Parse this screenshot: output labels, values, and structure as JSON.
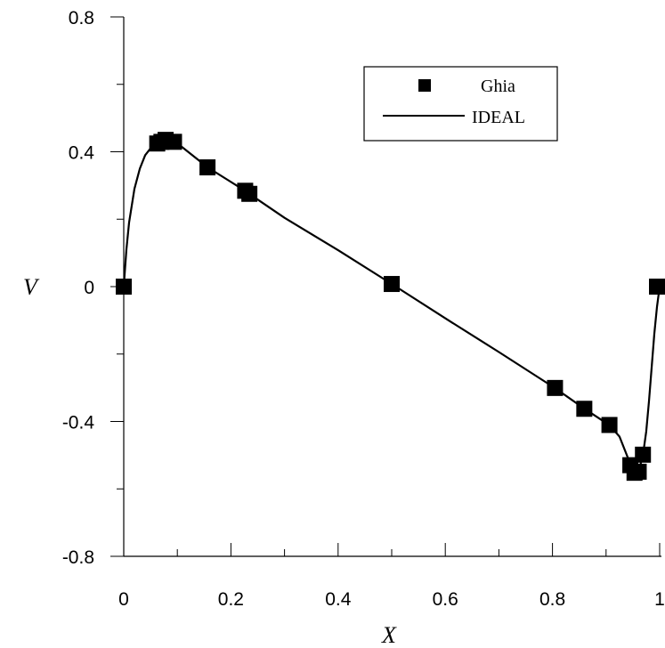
{
  "chart_data": {
    "type": "line",
    "xlabel": "X",
    "ylabel": "V",
    "xlim": [
      0,
      1
    ],
    "ylim": [
      -0.8,
      0.8
    ],
    "x_ticks": [
      "0",
      "0.2",
      "0.4",
      "0.6",
      "0.8",
      "1"
    ],
    "y_ticks": [
      "0.8",
      "0.4",
      "0",
      "-0.4",
      "-0.8"
    ],
    "x_tick_values": [
      0,
      0.2,
      0.4,
      0.6,
      0.8,
      1
    ],
    "y_tick_values": [
      0.8,
      0.4,
      0,
      -0.4,
      -0.8
    ],
    "legend_position": "top-right",
    "series": [
      {
        "name": "Ghia",
        "style": "markers",
        "marker": "square",
        "color": "#000000",
        "points": [
          [
            0.0,
            0.0
          ],
          [
            0.0625,
            0.4245
          ],
          [
            0.0703,
            0.4294
          ],
          [
            0.0781,
            0.4353
          ],
          [
            0.0938,
            0.4295
          ],
          [
            0.1563,
            0.3537
          ],
          [
            0.2266,
            0.2843
          ],
          [
            0.2344,
            0.2752
          ],
          [
            0.5,
            0.0078
          ],
          [
            0.8047,
            -0.3006
          ],
          [
            0.8594,
            -0.3624
          ],
          [
            0.9063,
            -0.4104
          ],
          [
            0.9453,
            -0.5297
          ],
          [
            0.9531,
            -0.5522
          ],
          [
            0.9609,
            -0.549
          ],
          [
            0.9688,
            -0.4985
          ],
          [
            1.0,
            0.0
          ]
        ]
      },
      {
        "name": "IDEAL",
        "style": "line",
        "color": "#000000",
        "points": [
          [
            0.0,
            0.0
          ],
          [
            0.005,
            0.11
          ],
          [
            0.01,
            0.19
          ],
          [
            0.02,
            0.29
          ],
          [
            0.03,
            0.35
          ],
          [
            0.04,
            0.39
          ],
          [
            0.05,
            0.41
          ],
          [
            0.0625,
            0.424
          ],
          [
            0.0703,
            0.429
          ],
          [
            0.0781,
            0.434
          ],
          [
            0.09,
            0.433
          ],
          [
            0.1,
            0.425
          ],
          [
            0.1563,
            0.354
          ],
          [
            0.2266,
            0.284
          ],
          [
            0.2344,
            0.275
          ],
          [
            0.3,
            0.204
          ],
          [
            0.4,
            0.108
          ],
          [
            0.5,
            0.008
          ],
          [
            0.6,
            -0.094
          ],
          [
            0.7,
            -0.194
          ],
          [
            0.8047,
            -0.301
          ],
          [
            0.8594,
            -0.362
          ],
          [
            0.9063,
            -0.411
          ],
          [
            0.925,
            -0.445
          ],
          [
            0.94,
            -0.505
          ],
          [
            0.9531,
            -0.548
          ],
          [
            0.9609,
            -0.547
          ],
          [
            0.9688,
            -0.5
          ],
          [
            0.975,
            -0.43
          ],
          [
            0.98,
            -0.34
          ],
          [
            0.985,
            -0.24
          ],
          [
            0.99,
            -0.14
          ],
          [
            0.995,
            -0.06
          ],
          [
            1.0,
            0.0
          ]
        ]
      }
    ]
  }
}
